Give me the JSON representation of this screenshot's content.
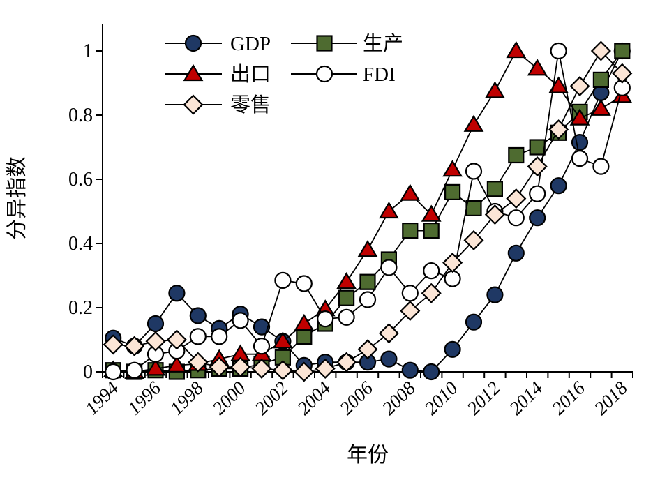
{
  "chart_data": {
    "type": "line",
    "title": "",
    "xlabel": "年份",
    "ylabel": "分异指数",
    "x": [
      1994,
      1995,
      1996,
      1997,
      1998,
      1999,
      2000,
      2001,
      2002,
      2003,
      2004,
      2005,
      2006,
      2007,
      2008,
      2009,
      2010,
      2011,
      2012,
      2013,
      2014,
      2015,
      2016,
      2017,
      2018
    ],
    "x_tick_labels": [
      "1994",
      "1996",
      "1998",
      "2000",
      "2002",
      "2004",
      "2006",
      "2008",
      "2010",
      "2012",
      "2014",
      "2016",
      "2018"
    ],
    "y_tick_labels": [
      "0",
      "0.2",
      "0.4",
      "0.6",
      "0.8",
      "1"
    ],
    "y_tick_values": [
      0,
      0.2,
      0.4,
      0.6,
      0.8,
      1
    ],
    "ylim": [
      0,
      1.08
    ],
    "grid": false,
    "legend_position": "top-left-inside",
    "series": [
      {
        "name": "GDP",
        "marker": "circle",
        "color": "#1f3864",
        "values": [
          0.105,
          0.08,
          0.15,
          0.245,
          0.175,
          0.135,
          0.18,
          0.14,
          0.095,
          0.02,
          0.03,
          0.03,
          0.03,
          0.04,
          0.005,
          0,
          0.07,
          0.155,
          0.24,
          0.37,
          0.48,
          0.58,
          0.715,
          0.87,
          1.0
        ]
      },
      {
        "name": "生产",
        "marker": "square",
        "color": "#4e6b30",
        "values": [
          0.005,
          0,
          0.005,
          0,
          0.005,
          0.01,
          0.01,
          0.025,
          0.045,
          0.11,
          0.15,
          0.23,
          0.28,
          0.35,
          0.44,
          0.44,
          0.56,
          0.51,
          0.57,
          0.675,
          0.7,
          0.745,
          0.81,
          0.91,
          1.0
        ]
      },
      {
        "name": "出口",
        "marker": "triangle",
        "color": "#c00000",
        "values": [
          0.005,
          0,
          0.01,
          0.02,
          0.025,
          0.04,
          0.055,
          0.055,
          0.095,
          0.15,
          0.195,
          0.28,
          0.38,
          0.5,
          0.555,
          0.49,
          0.63,
          0.77,
          0.875,
          1.0,
          0.945,
          0.89,
          0.79,
          0.82,
          0.86
        ]
      },
      {
        "name": "FDI",
        "marker": "circle-open",
        "color": "#ffffff",
        "values": [
          0,
          0.005,
          0.055,
          0.065,
          0.11,
          0.11,
          0.16,
          0.08,
          0.285,
          0.275,
          0.165,
          0.17,
          0.225,
          0.325,
          0.245,
          0.315,
          0.29,
          0.625,
          0.5,
          0.48,
          0.555,
          1.0,
          0.665,
          0.64,
          0.885
        ]
      },
      {
        "name": "零售",
        "marker": "diamond",
        "color": "#fbe5d6",
        "values": [
          0.085,
          0.08,
          0.095,
          0.1,
          0.03,
          0.015,
          0.015,
          0.01,
          0.005,
          0,
          0.01,
          0.03,
          0.07,
          0.12,
          0.19,
          0.245,
          0.34,
          0.41,
          0.49,
          0.54,
          0.64,
          0.755,
          0.89,
          1.0,
          0.93
        ]
      }
    ],
    "line_color": "#000000",
    "axis_color": "#000000"
  }
}
